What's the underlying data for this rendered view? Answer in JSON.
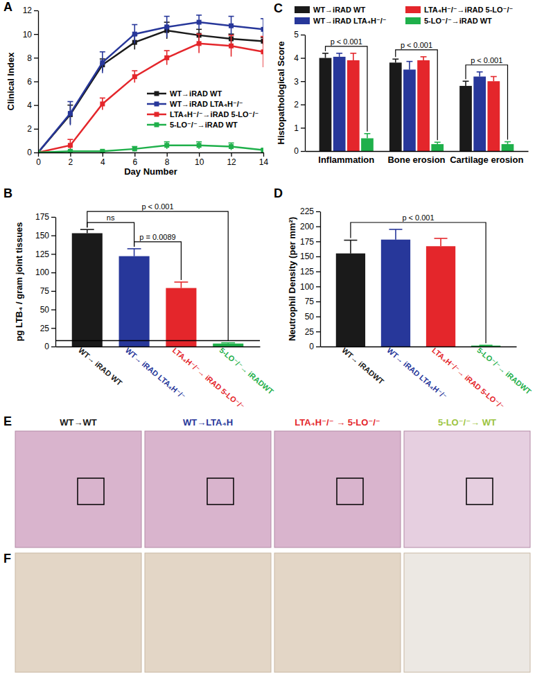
{
  "chart_data": [
    {
      "panel": "A",
      "type": "line",
      "x": [
        0,
        2,
        4,
        6,
        8,
        10,
        12,
        14
      ],
      "xlim": [
        0,
        14
      ],
      "xticks": [
        0,
        2,
        4,
        6,
        8,
        10,
        12,
        14
      ],
      "ylim": [
        0,
        12
      ],
      "yticks": [
        0,
        2,
        4,
        6,
        8,
        10,
        12
      ],
      "xlabel": "Day Number",
      "ylabel": "Clinical Index",
      "legend": "center right",
      "marker": "square",
      "series": [
        {
          "name": "WT→iRAD WT",
          "color": "#1a1a1a",
          "values": [
            0,
            3.2,
            7.4,
            9.3,
            10.3,
            9.9,
            9.6,
            9.4
          ],
          "errors": [
            0,
            0.8,
            0.5,
            0.6,
            0.7,
            0.5,
            0.4,
            0.3
          ]
        },
        {
          "name": "WT→iRAD LTA₄H⁻/⁻",
          "color": "#27379a",
          "values": [
            0,
            3.3,
            7.6,
            10.0,
            10.6,
            11.0,
            10.7,
            10.4
          ],
          "errors": [
            0,
            1.0,
            0.9,
            0.8,
            0.9,
            0.6,
            0.8,
            0.9
          ]
        },
        {
          "name": "LTA₄H⁻/⁻→iRAD 5-LO⁻/⁻",
          "color": "#e4262b",
          "values": [
            0,
            0.6,
            4.1,
            6.4,
            8.0,
            9.2,
            9.0,
            8.5
          ],
          "errors": [
            0,
            0.5,
            0.5,
            0.5,
            0.6,
            0.8,
            0.9,
            1.3
          ]
        },
        {
          "name": "5-LO⁻/⁻→iRAD WT",
          "color": "#1fb04b",
          "values": [
            0,
            0.1,
            0.1,
            0.3,
            0.6,
            0.6,
            0.5,
            0.2
          ],
          "errors": [
            0,
            0.05,
            0.05,
            0.2,
            0.3,
            0.3,
            0.3,
            0.1
          ]
        }
      ]
    },
    {
      "panel": "B",
      "type": "bar",
      "categories": [
        "WT→ iRAD WT",
        "WT→ iRAD LTA₄H⁻/⁻",
        "LTA₄H⁻/⁻→ iRAD 5-LO⁻/⁻",
        "5-LO⁻/⁻→ iRADWT"
      ],
      "values": [
        153,
        122,
        79,
        4
      ],
      "errors": [
        5,
        10,
        8,
        1
      ],
      "colors": [
        "#1a1a1a",
        "#27379a",
        "#e4262b",
        "#1fb04b"
      ],
      "ylim": [
        0,
        175
      ],
      "yticks": [
        0,
        25,
        50,
        75,
        100,
        125,
        150,
        175
      ],
      "ylabel": "pg LTB₄ / gram joint tissues",
      "detection_limit": 8,
      "annotations": [
        {
          "text": "ns",
          "from": 0,
          "to": 1
        },
        {
          "text": "p = 0.0089",
          "from": 1,
          "to": 2
        },
        {
          "text": "p < 0.001",
          "from": 0,
          "to": 3
        }
      ]
    },
    {
      "panel": "C",
      "type": "bar",
      "categories": [
        "Inflammation",
        "Bone erosion",
        "Cartilage erosion"
      ],
      "ylim": [
        0,
        5
      ],
      "yticks": [
        0,
        1,
        2,
        3,
        4,
        5
      ],
      "ylabel": "Histopathological Score",
      "legend": "top",
      "series": [
        {
          "name": "WT→iRAD WT",
          "color": "#1a1a1a",
          "values": [
            4.0,
            3.8,
            2.8
          ],
          "errors": [
            0.2,
            0.15,
            0.2
          ]
        },
        {
          "name": "WT→iRAD LTA₄H⁻/⁻",
          "color": "#27379a",
          "values": [
            4.05,
            3.5,
            3.2
          ],
          "errors": [
            0.15,
            0.35,
            0.2
          ]
        },
        {
          "name": "LTA₄H⁻/⁻→iRAD 5-LO⁻/⁻",
          "color": "#e4262b",
          "values": [
            3.9,
            3.9,
            3.0
          ],
          "errors": [
            0.3,
            0.15,
            0.2
          ]
        },
        {
          "name": "5-LO⁻/⁻→iRAD WT",
          "color": "#1fb04b",
          "values": [
            0.55,
            0.3,
            0.3
          ],
          "errors": [
            0.2,
            0.08,
            0.1
          ]
        }
      ],
      "annotations": [
        {
          "text": "p < 0.001",
          "category": 0,
          "from": 0,
          "to": 3
        },
        {
          "text": "p < 0.001",
          "category": 1,
          "from": 0,
          "to": 3
        },
        {
          "text": "p < 0.001",
          "category": 2,
          "from": 0,
          "to": 3
        }
      ]
    },
    {
      "panel": "D",
      "type": "bar",
      "categories": [
        "WT→ iRADWT",
        "WT→ iRAD LTA₄H⁻/⁻",
        "LTA₄H⁻/⁻→ iRAD 5-LO⁻/⁻",
        "5-LO⁻/⁻→ iRADWT"
      ],
      "values": [
        155,
        178,
        167,
        1.5
      ],
      "errors": [
        22,
        17,
        13,
        0.5
      ],
      "colors": [
        "#1a1a1a",
        "#27379a",
        "#e4262b",
        "#1fb04b"
      ],
      "ylim": [
        0,
        225
      ],
      "yticks": [
        0,
        25,
        50,
        75,
        100,
        125,
        150,
        175,
        200,
        225
      ],
      "ylabel": "Neutrophil Density (per mm²)",
      "annotations": [
        {
          "text": "p < 0.001",
          "from": 0,
          "to": 3
        }
      ]
    },
    {
      "panel": "E",
      "type": "image",
      "labels": [
        "WT→WT",
        "WT→LTA₄H",
        "LTA₄H⁻/⁻ → 5-LO⁻/⁻",
        "5-LO⁻/⁻→ WT"
      ],
      "colors": [
        "#1a1a1a",
        "#27379a",
        "#e4262b",
        "#9cc43f"
      ]
    },
    {
      "panel": "F",
      "type": "image"
    }
  ]
}
